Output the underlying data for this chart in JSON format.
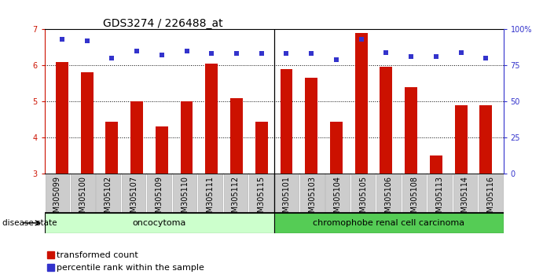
{
  "title": "GDS3274 / 226488_at",
  "samples": [
    "GSM305099",
    "GSM305100",
    "GSM305102",
    "GSM305107",
    "GSM305109",
    "GSM305110",
    "GSM305111",
    "GSM305112",
    "GSM305115",
    "GSM305101",
    "GSM305103",
    "GSM305104",
    "GSM305105",
    "GSM305106",
    "GSM305108",
    "GSM305113",
    "GSM305114",
    "GSM305116"
  ],
  "transformed_count": [
    6.1,
    5.8,
    4.45,
    5.0,
    4.3,
    5.0,
    6.05,
    5.1,
    4.45,
    5.9,
    5.65,
    4.45,
    6.9,
    5.95,
    5.4,
    3.5,
    4.9,
    4.9
  ],
  "percentile_rank": [
    93,
    92,
    80,
    85,
    82,
    85,
    83,
    83,
    83,
    83,
    83,
    79,
    93,
    84,
    81,
    81,
    84,
    80
  ],
  "ylim_left": [
    3,
    7
  ],
  "ylim_right": [
    0,
    100
  ],
  "yticks_left": [
    3,
    4,
    5,
    6,
    7
  ],
  "yticks_right": [
    0,
    25,
    50,
    75,
    100
  ],
  "ytick_labels_right": [
    "0",
    "25",
    "50",
    "75",
    "100%"
  ],
  "bar_color": "#cc1100",
  "dot_color": "#3333cc",
  "group1_label": "oncocytoma",
  "group2_label": "chromophobe renal cell carcinoma",
  "group1_count": 9,
  "disease_state_label": "disease state",
  "legend_bar_label": "transformed count",
  "legend_dot_label": "percentile rank within the sample",
  "group1_color": "#ccffcc",
  "group2_color": "#55cc55",
  "xtick_bg": "#cccccc",
  "title_fontsize": 10,
  "tick_fontsize": 7,
  "legend_fontsize": 8
}
